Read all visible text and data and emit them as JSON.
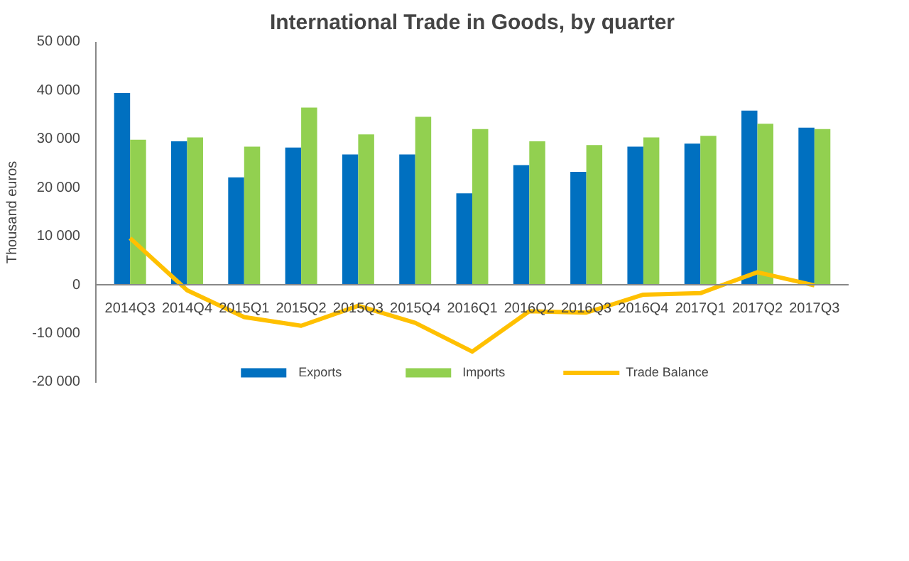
{
  "chart_data": {
    "type": "bar",
    "title": "International Trade in Goods, by quarter",
    "ylabel": "Thousand euros",
    "categories": [
      "2014Q3",
      "2014Q4",
      "2015Q1",
      "2015Q2",
      "2015Q3",
      "2015Q4",
      "2016Q1",
      "2016Q2",
      "2016Q3",
      "2016Q4",
      "2017Q1",
      "2017Q2",
      "2017Q3"
    ],
    "series": [
      {
        "name": "Exports",
        "color": "#0070c0",
        "values": [
          39500,
          29600,
          22200,
          28300,
          26900,
          26900,
          18900,
          24700,
          23300,
          28500,
          29100,
          35900,
          32400
        ]
      },
      {
        "name": "Imports",
        "color": "#92d050",
        "values": [
          29900,
          30400,
          28500,
          36500,
          31000,
          34600,
          32100,
          29600,
          28800,
          30400,
          30700,
          33200,
          32100
        ]
      },
      {
        "name": "Trade Balance",
        "type": "line",
        "color": "#ffc000",
        "values": [
          9700,
          -1000,
          -6500,
          -8300,
          -4200,
          -7700,
          -13600,
          -5300,
          -5600,
          -1900,
          -1600,
          2700,
          0
        ]
      }
    ],
    "ylim": [
      -20000,
      50000
    ],
    "yticks": [
      {
        "value": -20000,
        "label": "-20 000"
      },
      {
        "value": -10000,
        "label": "-10 000"
      },
      0,
      {
        "value": 10000,
        "label": "10 000"
      },
      {
        "value": 20000,
        "label": "20 000"
      },
      {
        "value": 30000,
        "label": "30 000"
      },
      {
        "value": 40000,
        "label": "40 000"
      },
      {
        "value": 50000,
        "label": "50 000"
      }
    ],
    "grid": false,
    "legend": "bottom",
    "marker": "none",
    "line_style": "solid"
  }
}
